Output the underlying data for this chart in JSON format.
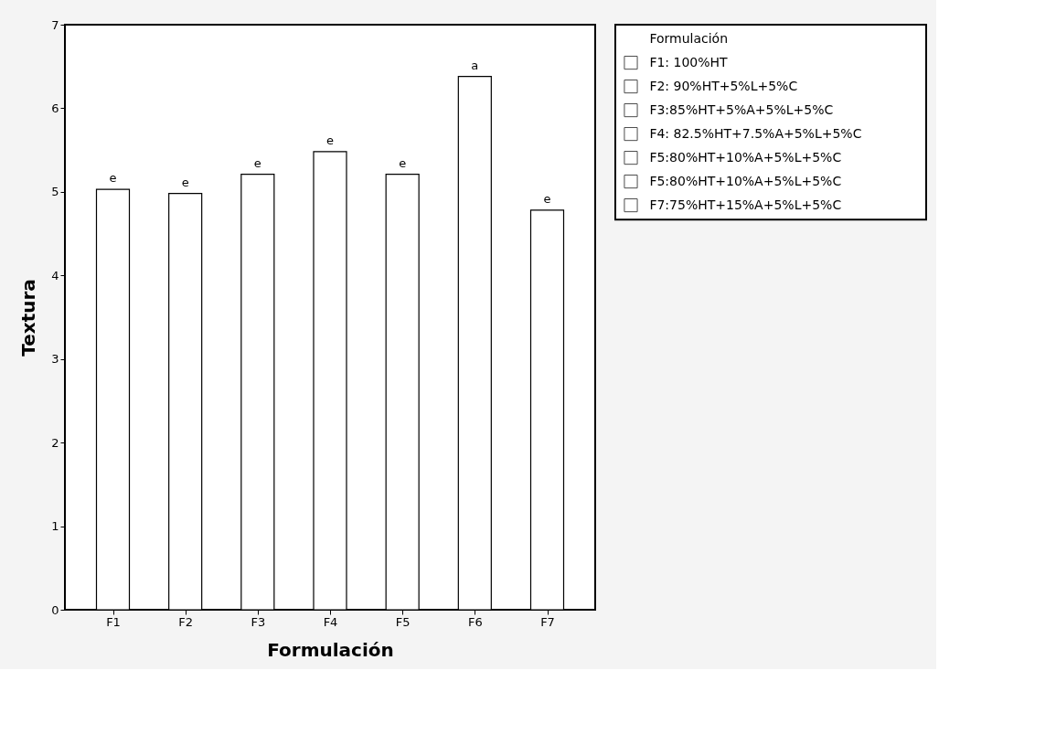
{
  "chart_data": {
    "type": "bar",
    "xlabel": "Formulación",
    "ylabel": "Textura",
    "legend_title": "Formulación",
    "categories": [
      "F1",
      "F2",
      "F3",
      "F4",
      "F5",
      "F6",
      "F7"
    ],
    "series": [
      {
        "name": "F1: 100%HT",
        "color": "#ffffff",
        "values": [
          5.03,
          null,
          null,
          null,
          null,
          null,
          null
        ]
      },
      {
        "name": "F2: 90%HT+5%L+5%C",
        "color": "#ffffff",
        "values": [
          null,
          4.98,
          null,
          null,
          null,
          null,
          null
        ]
      },
      {
        "name": "F3:85%HT+5%A+5%L+5%C",
        "color": "#ffffff",
        "values": [
          null,
          null,
          5.21,
          null,
          null,
          null,
          null
        ]
      },
      {
        "name": "F4: 82.5%HT+7.5%A+5%L+5%C",
        "color": "#ffffff",
        "values": [
          null,
          null,
          null,
          5.48,
          null,
          null,
          null
        ]
      },
      {
        "name": "F5:80%HT+10%A+5%L+5%C",
        "color": "#ffffff",
        "values": [
          null,
          null,
          null,
          null,
          5.21,
          null,
          null
        ]
      },
      {
        "name": "F5:80%HT+10%A+5%L+5%C",
        "color": "#ffffff",
        "values": [
          null,
          null,
          null,
          null,
          null,
          6.38,
          null
        ]
      },
      {
        "name": "F7:75%HT+15%A+5%L+5%C",
        "color": "#ffffff",
        "values": [
          null,
          null,
          null,
          null,
          null,
          null,
          4.78
        ]
      }
    ],
    "value_labels": [
      "e",
      "e",
      "e",
      "e",
      "e",
      "a",
      "e"
    ],
    "ylim": [
      0,
      7
    ],
    "yticks": [
      0,
      1,
      2,
      3,
      4,
      5,
      6,
      7
    ],
    "grid": false,
    "legend": "right"
  }
}
